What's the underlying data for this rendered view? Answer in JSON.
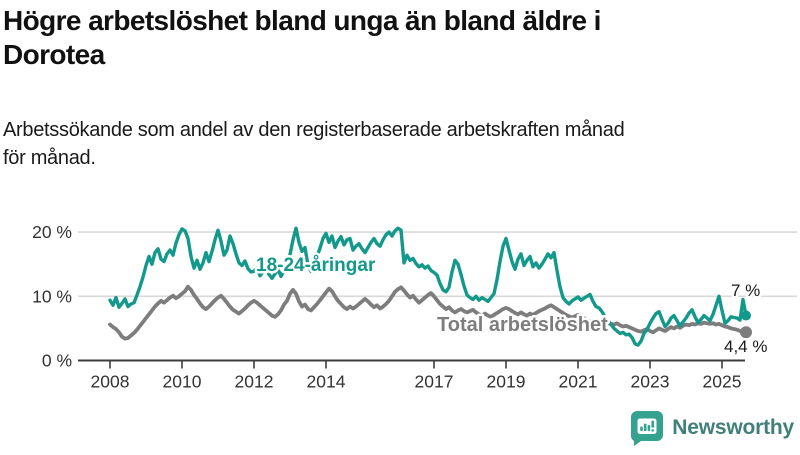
{
  "header": {
    "title_line1": "Högre arbetslöshet bland unga än bland äldre i",
    "title_line2": "Dorotea",
    "subtitle_line1": "Arbetssökande som andel av den registerbaserade arbetskraften månad",
    "subtitle_line2": "för månad."
  },
  "footer": {
    "brand": "Newsworthy",
    "logo_bubble_color": "#35a18f",
    "logo_text_color": "#417f7b"
  },
  "chart_data": {
    "type": "line",
    "title": "Högre arbetslöshet bland unga än bland äldre i Dorotea",
    "subtitle": "Arbetssökande som andel av den registerbaserade arbetskraften månad för månad.",
    "unit": "%",
    "grid": "horizontal",
    "legend_position": "inline-labels",
    "ylim": [
      0,
      21.5
    ],
    "y_ticks": [
      {
        "label": "20 %",
        "value": 20
      },
      {
        "label": "10 %",
        "value": 10
      },
      {
        "label": "0 %",
        "value": 0
      }
    ],
    "x_start": "2008-01",
    "x_end": "2025-09",
    "x_tick_labels": [
      "2008",
      "2010",
      "2012",
      "2014",
      "2017",
      "2019",
      "2021",
      "2023",
      "2025"
    ],
    "axis_color": "#3d3d3d",
    "gridline_color": "#d9d9d9",
    "series": [
      {
        "name": "Total arbetslöshet",
        "color": "#7d7d7d",
        "end_label": "4,4 %",
        "end_value": 4.4,
        "values": [
          5.6,
          5.2,
          4.9,
          4.4,
          3.7,
          3.4,
          3.5,
          3.9,
          4.3,
          4.8,
          5.4,
          6.0,
          6.6,
          7.2,
          7.8,
          8.4,
          8.9,
          9.3,
          9.0,
          9.4,
          9.8,
          10.1,
          9.7,
          10.0,
          10.4,
          10.8,
          11.5,
          11.0,
          10.2,
          9.6,
          8.9,
          8.3,
          8.0,
          8.4,
          8.9,
          9.4,
          9.8,
          10.1,
          9.6,
          9.0,
          8.4,
          7.9,
          7.6,
          7.3,
          7.7,
          8.1,
          8.6,
          9.0,
          9.3,
          9.0,
          8.6,
          8.2,
          7.8,
          7.4,
          7.0,
          6.8,
          7.2,
          7.8,
          8.7,
          9.3,
          10.4,
          11.0,
          10.4,
          9.2,
          8.4,
          8.7,
          8.0,
          7.8,
          8.3,
          8.8,
          9.4,
          10.0,
          10.6,
          11.2,
          10.8,
          10.0,
          9.3,
          8.8,
          8.3,
          8.0,
          8.4,
          8.1,
          8.4,
          8.8,
          9.2,
          9.6,
          9.2,
          8.7,
          8.3,
          8.6,
          8.1,
          8.4,
          8.8,
          9.3,
          10.0,
          10.7,
          11.1,
          11.4,
          10.9,
          10.3,
          9.8,
          10.1,
          9.5,
          9.0,
          9.4,
          9.8,
          10.2,
          10.5,
          10.0,
          9.4,
          8.8,
          8.4,
          8.0,
          8.3,
          7.8,
          7.5,
          7.8,
          8.0,
          7.7,
          7.5,
          7.7,
          7.9,
          7.5,
          7.2,
          7.0,
          7.3,
          7.0,
          6.8,
          7.1,
          7.4,
          7.7,
          8.0,
          8.2,
          8.0,
          7.7,
          7.4,
          7.2,
          7.5,
          7.2,
          7.0,
          7.3,
          7.1,
          7.4,
          7.7,
          7.9,
          8.1,
          8.4,
          8.6,
          8.3,
          8.0,
          7.7,
          7.4,
          7.1,
          6.9,
          6.7,
          6.9,
          7.1,
          6.9,
          6.6,
          6.3,
          6.1,
          5.9,
          5.7,
          5.5,
          5.4,
          5.6,
          5.8,
          5.7,
          5.6,
          5.8,
          5.5,
          5.3,
          5.4,
          5.2,
          5.0,
          4.8,
          4.6,
          4.5,
          4.7,
          4.9,
          4.6,
          4.4,
          4.7,
          5.0,
          4.8,
          4.6,
          4.9,
          5.2,
          5.0,
          5.3,
          5.1,
          5.4,
          5.6,
          5.5,
          5.7,
          5.6,
          5.8,
          5.7,
          5.9,
          5.8,
          5.7,
          5.8,
          5.6,
          5.7,
          5.5,
          5.3,
          5.2,
          5.0,
          4.9,
          4.8,
          4.6,
          4.5,
          4.4
        ]
      },
      {
        "name": "18-24-åringar",
        "color": "#12998c",
        "end_label": "7 %",
        "end_value": 7.0,
        "values": [
          9.4,
          8.6,
          9.8,
          8.3,
          8.9,
          9.6,
          8.4,
          8.8,
          9.0,
          10.2,
          11.5,
          13.0,
          14.8,
          16.2,
          15.0,
          16.8,
          17.4,
          15.8,
          15.4,
          16.6,
          17.2,
          16.4,
          18.3,
          19.6,
          20.5,
          20.2,
          19.0,
          16.2,
          14.4,
          15.6,
          14.2,
          15.2,
          16.8,
          15.4,
          17.0,
          18.8,
          20.3,
          18.6,
          16.4,
          17.2,
          19.4,
          18.2,
          16.6,
          15.2,
          14.8,
          15.5,
          14.3,
          13.8,
          13.9,
          14.4,
          13.2,
          13.8,
          14.6,
          13.4,
          12.8,
          13.5,
          14.2,
          13.1,
          14.0,
          15.2,
          16.5,
          18.8,
          20.6,
          18.4,
          17.0,
          17.6,
          14.8,
          13.9,
          15.0,
          16.3,
          17.5,
          19.0,
          19.8,
          18.4,
          19.4,
          17.6,
          18.6,
          19.3,
          18.0,
          18.8,
          19.0,
          17.2,
          17.8,
          18.2,
          17.4,
          16.8,
          17.6,
          18.4,
          19.0,
          18.2,
          17.8,
          18.8,
          19.6,
          20.0,
          19.4,
          20.2,
          20.6,
          20.3,
          15.2,
          16.4,
          15.6,
          15.9,
          15.1,
          14.6,
          14.9,
          14.4,
          14.7,
          14.0,
          13.7,
          13.3,
          12.0,
          11.0,
          10.7,
          11.4,
          13.8,
          15.6,
          15.0,
          13.4,
          11.6,
          10.2,
          9.8,
          9.5,
          10.0,
          9.4,
          9.8,
          9.5,
          9.2,
          9.8,
          10.4,
          12.6,
          15.4,
          17.8,
          19.0,
          17.2,
          15.4,
          14.2,
          15.8,
          16.6,
          14.8,
          15.6,
          16.2,
          14.6,
          15.2,
          14.4,
          15.0,
          15.8,
          16.6,
          16.0,
          16.8,
          14.0,
          11.5,
          9.8,
          9.2,
          8.8,
          9.3,
          9.6,
          9.9,
          9.4,
          9.7,
          10.0,
          10.3,
          9.2,
          8.4,
          8.2,
          7.6,
          6.8,
          6.2,
          5.6,
          5.0,
          4.6,
          4.2,
          4.4,
          4.0,
          4.1,
          3.6,
          2.6,
          2.4,
          3.0,
          4.2,
          4.8,
          5.8,
          6.6,
          7.3,
          7.6,
          6.4,
          5.3,
          5.8,
          6.6,
          7.0,
          6.2,
          5.4,
          6.0,
          6.6,
          7.4,
          7.9,
          6.8,
          5.9,
          6.4,
          7.0,
          6.6,
          6.2,
          7.2,
          8.6,
          10.0,
          7.8,
          5.8,
          6.2,
          6.8,
          6.7,
          6.6,
          6.3,
          9.5,
          7.0
        ]
      }
    ]
  }
}
